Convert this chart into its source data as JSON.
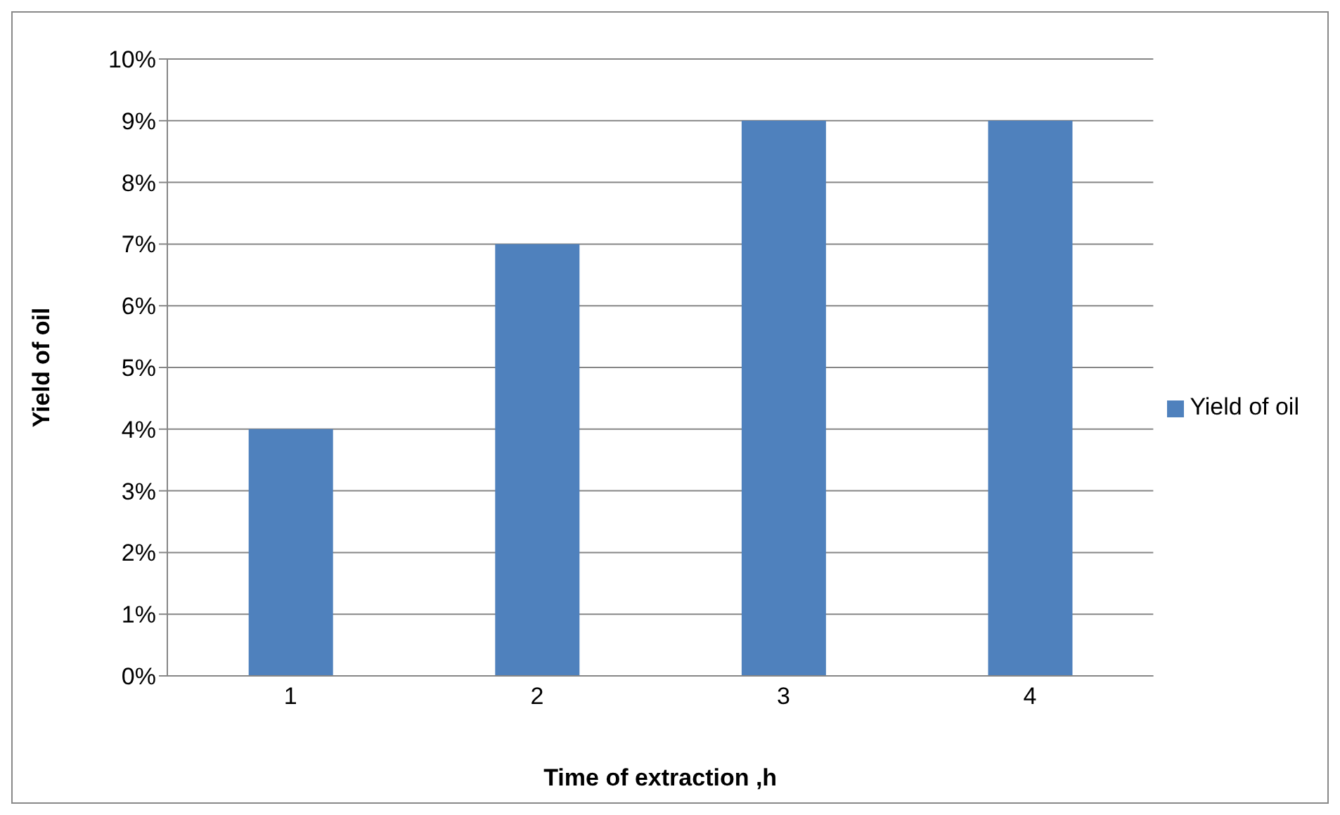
{
  "chart_data": {
    "type": "bar",
    "xlabel": "Time of extraction ,h",
    "ylabel": "Yield of oil",
    "categories": [
      "1",
      "2",
      "3",
      "4"
    ],
    "series": [
      {
        "name": "Yield of oil",
        "color": "#4f81bd",
        "values": [
          4,
          7,
          9,
          9
        ]
      }
    ],
    "ylim": [
      0,
      10
    ],
    "yticks": [
      {
        "value": 0,
        "label": "0%"
      },
      {
        "value": 1,
        "label": "1%"
      },
      {
        "value": 2,
        "label": "2%"
      },
      {
        "value": 3,
        "label": "3%"
      },
      {
        "value": 4,
        "label": "4%"
      },
      {
        "value": 5,
        "label": "5%"
      },
      {
        "value": 6,
        "label": "6%"
      },
      {
        "value": 7,
        "label": "7%"
      },
      {
        "value": 8,
        "label": "8%"
      },
      {
        "value": 9,
        "label": "9%"
      },
      {
        "value": 10,
        "label": "10%"
      }
    ],
    "grid": "y",
    "legend": "right"
  }
}
